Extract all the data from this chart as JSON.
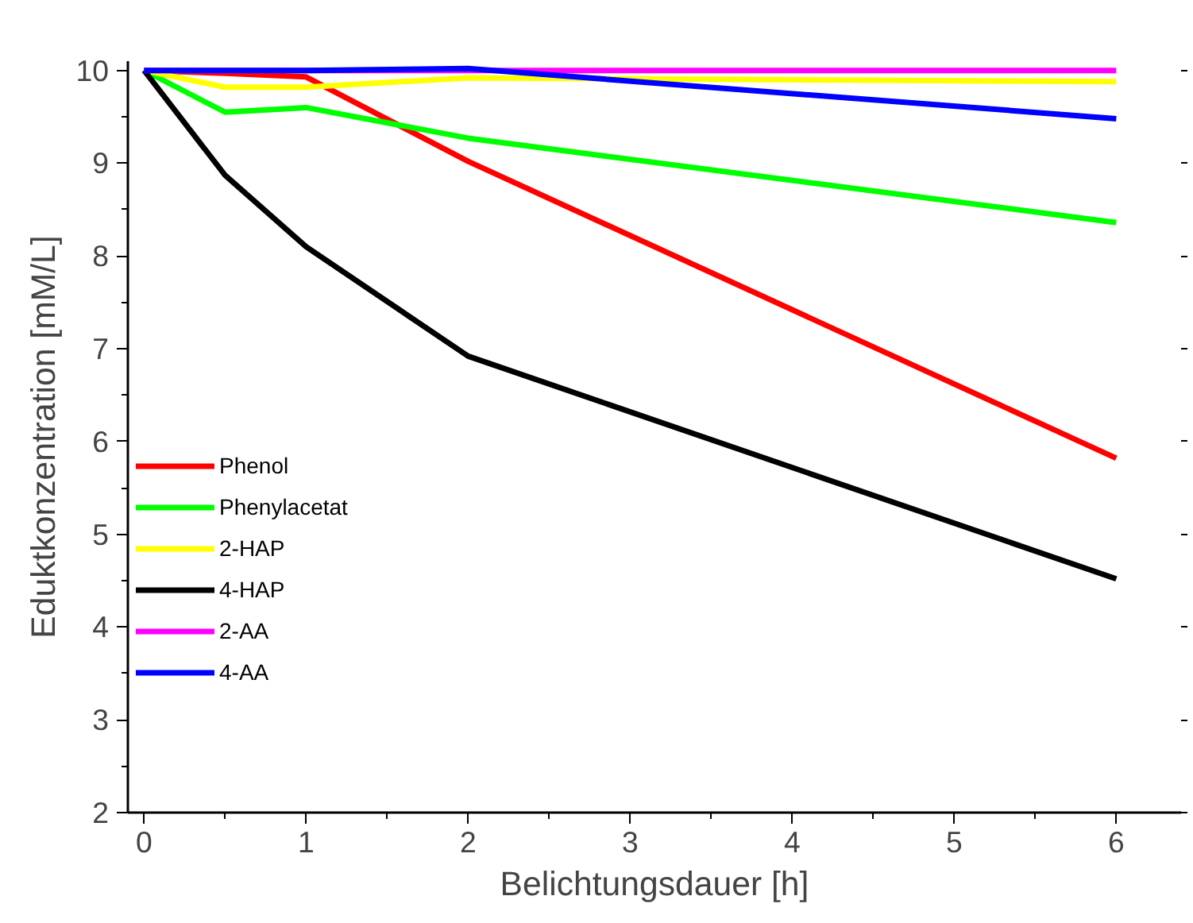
{
  "chart_data": {
    "type": "line",
    "xlabel": "Belichtungsdauer [h]",
    "ylabel": "Eduktkonzentration [mM/L]",
    "x": [
      0,
      0.5,
      1,
      2,
      6
    ],
    "series": [
      {
        "name": "Phenol",
        "color": "#ff0000",
        "values": [
          10,
          9.97,
          9.93,
          9.02,
          5.82
        ]
      },
      {
        "name": "Phenylacetat",
        "color": "#00ff00",
        "values": [
          10,
          9.55,
          9.6,
          9.27,
          8.36
        ]
      },
      {
        "name": "2-HAP",
        "color": "#ffff00",
        "values": [
          10,
          9.82,
          9.82,
          9.92,
          9.88
        ]
      },
      {
        "name": "4-HAP",
        "color": "#000000",
        "values": [
          10,
          8.87,
          8.1,
          6.92,
          4.52
        ]
      },
      {
        "name": "2-AA",
        "color": "#ff00ff",
        "values": [
          10,
          10,
          10,
          10,
          10
        ]
      },
      {
        "name": "4-AA",
        "color": "#0000ff",
        "values": [
          10,
          10,
          10,
          10.02,
          9.48
        ]
      }
    ],
    "xlim": [
      -0.1,
      6.4
    ],
    "ylim": [
      2,
      10.1
    ],
    "xticks": [
      0,
      1,
      2,
      3,
      4,
      5,
      6
    ],
    "yticks": [
      2,
      3,
      4,
      5,
      6,
      7,
      8,
      9,
      10
    ],
    "grid": false,
    "legend": "left",
    "marker": "none",
    "line_style": "solid"
  }
}
